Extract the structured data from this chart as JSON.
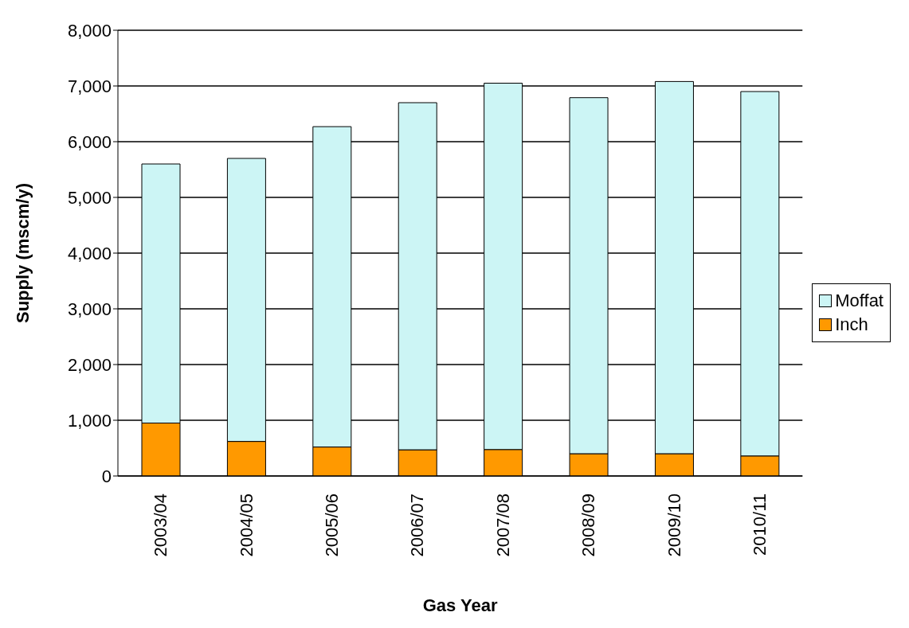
{
  "chart_data": {
    "type": "bar",
    "stacked": true,
    "xlabel": "Gas Year",
    "ylabel": "Supply (mscm/y)",
    "categories": [
      "2003/04",
      "2004/05",
      "2005/06",
      "2006/07",
      "2007/08",
      "2008/09",
      "2009/10",
      "2010/11"
    ],
    "series": [
      {
        "name": "Inch",
        "color": "#ff9900",
        "values": [
          950,
          620,
          520,
          470,
          475,
          400,
          400,
          360
        ]
      },
      {
        "name": "Moffat",
        "color": "#ccf5f5",
        "values": [
          4650,
          5080,
          5750,
          6230,
          6575,
          6390,
          6680,
          6540
        ]
      }
    ],
    "ylim": [
      0,
      8000
    ],
    "yticks": [
      {
        "value": 0,
        "label": "0"
      },
      {
        "value": 1000,
        "label": "1,000"
      },
      {
        "value": 2000,
        "label": "2,000"
      },
      {
        "value": 3000,
        "label": "3,000"
      },
      {
        "value": 4000,
        "label": "4,000"
      },
      {
        "value": 5000,
        "label": "5,000"
      },
      {
        "value": 6000,
        "label": "6,000"
      },
      {
        "value": 7000,
        "label": "7,000"
      },
      {
        "value": 8000,
        "label": "8,000"
      }
    ],
    "grid": "y",
    "legend": "right"
  }
}
